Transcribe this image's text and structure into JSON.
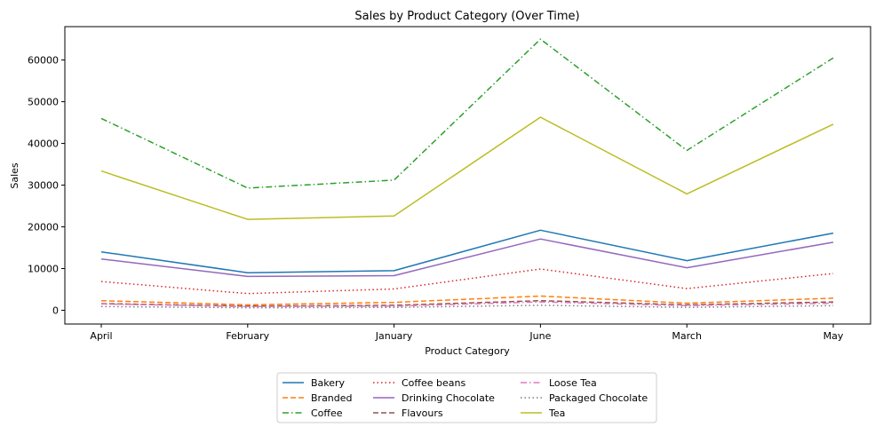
{
  "chart_data": {
    "type": "line",
    "title": "Sales by Product Category (Over Time)",
    "xlabel": "Product Category",
    "ylabel": "Sales",
    "categories": [
      "April",
      "February",
      "January",
      "June",
      "March",
      "May"
    ],
    "ylim": [
      -3300,
      68000
    ],
    "yticks": [
      0,
      10000,
      20000,
      30000,
      40000,
      50000,
      60000
    ],
    "ytick_labels": [
      "0",
      "10000",
      "20000",
      "30000",
      "40000",
      "50000",
      "60000"
    ],
    "grid": false,
    "legend_position": "bottom-center",
    "series": [
      {
        "name": "Bakery",
        "color": "#1f77b4",
        "dash": "solid",
        "values": [
          14000,
          9000,
          9500,
          19200,
          11900,
          18500
        ]
      },
      {
        "name": "Branded",
        "color": "#ff7f0e",
        "dash": "dashed",
        "values": [
          2300,
          1300,
          1900,
          3400,
          1700,
          2900
        ]
      },
      {
        "name": "Coffee",
        "color": "#2ca02c",
        "dash": "dashdot",
        "values": [
          46000,
          29300,
          31200,
          65000,
          38300,
          60500
        ]
      },
      {
        "name": "Coffee beans",
        "color": "#d62728",
        "dash": "dotted",
        "values": [
          6900,
          4000,
          5100,
          9900,
          5200,
          8800
        ]
      },
      {
        "name": "Drinking Chocolate",
        "color": "#9467bd",
        "dash": "solid",
        "values": [
          12300,
          8100,
          8300,
          17100,
          10200,
          16300
        ]
      },
      {
        "name": "Flavours",
        "color": "#8c564b",
        "dash": "dashed",
        "values": [
          1600,
          1000,
          1200,
          2300,
          1300,
          2000
        ]
      },
      {
        "name": "Loose Tea",
        "color": "#e377c2",
        "dash": "dashdot",
        "values": [
          1500,
          900,
          1000,
          2000,
          1100,
          1700
        ]
      },
      {
        "name": "Packaged Chocolate",
        "color": "#7f7f7f",
        "dash": "dotted",
        "values": [
          900,
          600,
          700,
          1200,
          700,
          1100
        ]
      },
      {
        "name": "Tea",
        "color": "#bcbd22",
        "dash": "solid",
        "values": [
          33400,
          21800,
          22600,
          46300,
          27900,
          44600
        ]
      }
    ]
  }
}
